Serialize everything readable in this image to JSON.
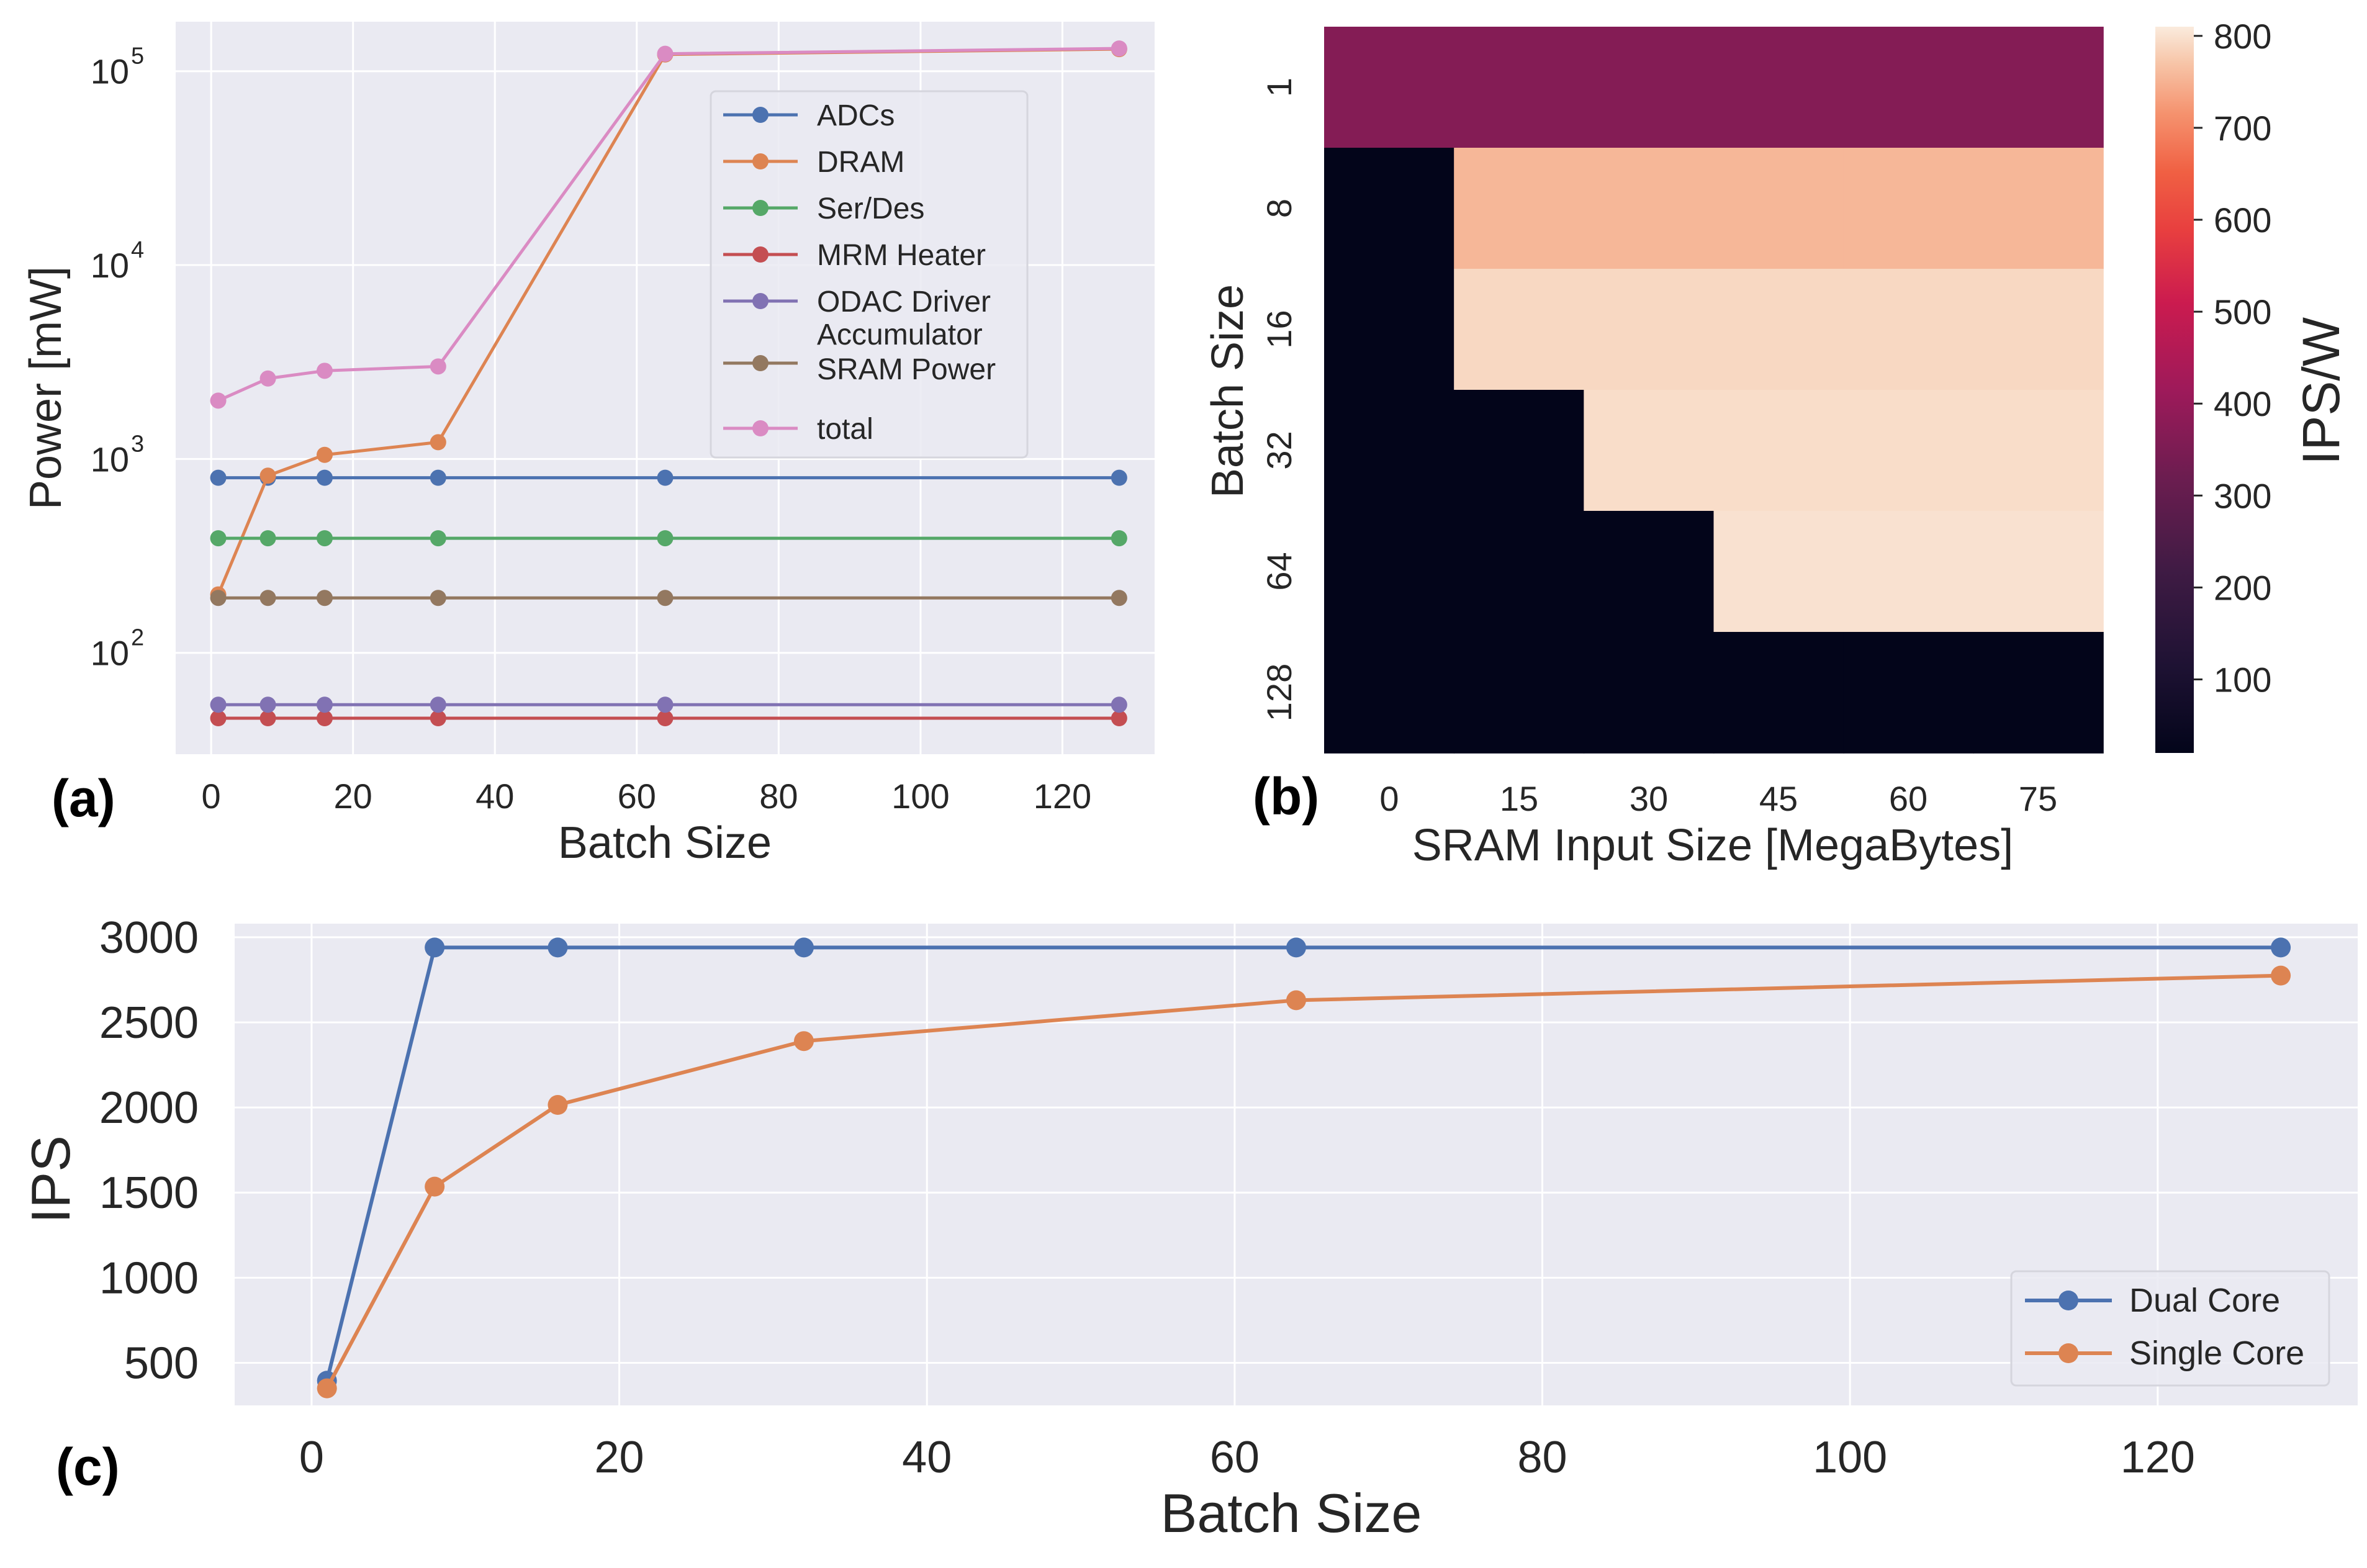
{
  "colors": {
    "plot_bg": "#EAEAF2",
    "grid": "#FFFFFF",
    "text": "#262626",
    "blue": "#4C72B0",
    "orange": "#DD8452",
    "green": "#55A868",
    "red": "#C44E52",
    "purple": "#8172B3",
    "brown": "#937860",
    "pink": "#DA8BC3"
  },
  "chart_data": [
    {
      "id": "a",
      "panel_label": "(a)",
      "type": "line",
      "xlabel": "Batch Size",
      "ylabel": "Power [mW]",
      "yscale": "log",
      "xlim": [
        -5,
        133
      ],
      "ylim": [
        30,
        180000
      ],
      "xticks": [
        0,
        20,
        40,
        60,
        80,
        100,
        120
      ],
      "xtick_labels": [
        "0",
        "20",
        "40",
        "60",
        "80",
        "100",
        "120"
      ],
      "yticks": [
        100,
        1000,
        10000,
        100000
      ],
      "ytick_base": "10",
      "ytick_exponents": [
        "2",
        "3",
        "4",
        "5"
      ],
      "legend_position": "upper center-right",
      "x": [
        1,
        8,
        16,
        32,
        64,
        128
      ],
      "series": [
        {
          "name": "ADCs",
          "color": "#4C72B0",
          "values": [
            800,
            800,
            800,
            800,
            800,
            800
          ]
        },
        {
          "name": "DRAM",
          "color": "#DD8452",
          "values": [
            200,
            820,
            1050,
            1220,
            122000,
            130000
          ]
        },
        {
          "name": "Ser/Des",
          "color": "#55A868",
          "values": [
            390,
            390,
            390,
            390,
            390,
            390
          ]
        },
        {
          "name": "MRM Heater",
          "color": "#C44E52",
          "values": [
            46,
            46,
            46,
            46,
            46,
            46
          ]
        },
        {
          "name": "ODAC Driver",
          "color": "#8172B3",
          "values": [
            54,
            54,
            54,
            54,
            54,
            54
          ]
        },
        {
          "name": "Accumulator SRAM Power",
          "legend_lines": [
            "Accumulator",
            "SRAM Power"
          ],
          "color": "#937860",
          "values": [
            192,
            192,
            192,
            192,
            192,
            192
          ]
        },
        {
          "name": "total",
          "color": "#DA8BC3",
          "values": [
            2000,
            2600,
            2850,
            3000,
            123000,
            131000
          ]
        }
      ]
    },
    {
      "id": "b",
      "panel_label": "(b)",
      "type": "heatmap",
      "xlabel": "SRAM Input Size [MegaBytes]",
      "ylabel": "Batch Size",
      "colorbar_label": "IPS/W",
      "xtick_labels": [
        "0",
        "15",
        "30",
        "45",
        "60",
        "75"
      ],
      "ytick_labels": [
        "1",
        "8",
        "16",
        "32",
        "64",
        "128"
      ],
      "colorbar_ticks": [
        100,
        200,
        300,
        400,
        500,
        600,
        700,
        800
      ],
      "colorbar_tick_labels": [
        "100",
        "200",
        "300",
        "400",
        "500",
        "600",
        "700",
        "800"
      ],
      "vmin": 20,
      "vmax": 810,
      "columns": 6,
      "values": [
        [
          365,
          365,
          365,
          365,
          365,
          365
        ],
        [
          20,
          755,
          755,
          755,
          755,
          755
        ],
        [
          20,
          790,
          790,
          790,
          790,
          790
        ],
        [
          20,
          20,
          795,
          795,
          795,
          795
        ],
        [
          20,
          20,
          20,
          800,
          800,
          800
        ],
        [
          20,
          20,
          20,
          20,
          20,
          20
        ]
      ]
    },
    {
      "id": "c",
      "panel_label": "(c)",
      "type": "line",
      "xlabel": "Batch Size",
      "ylabel": "IPS",
      "xlim": [
        -5,
        133
      ],
      "ylim": [
        250,
        3080
      ],
      "xticks": [
        0,
        20,
        40,
        60,
        80,
        100,
        120
      ],
      "xtick_labels": [
        "0",
        "20",
        "40",
        "60",
        "80",
        "100",
        "120"
      ],
      "yticks": [
        500,
        1000,
        1500,
        2000,
        2500,
        3000
      ],
      "ytick_labels": [
        "500",
        "1000",
        "1500",
        "2000",
        "2500",
        "3000"
      ],
      "legend_position": "lower right",
      "x": [
        1,
        8,
        16,
        32,
        64,
        128
      ],
      "series": [
        {
          "name": "Dual Core",
          "color": "#4C72B0",
          "values": [
            395,
            2940,
            2940,
            2940,
            2940,
            2940
          ]
        },
        {
          "name": "Single Core",
          "color": "#DD8452",
          "values": [
            350,
            1535,
            2015,
            2390,
            2630,
            2775
          ]
        }
      ]
    }
  ]
}
